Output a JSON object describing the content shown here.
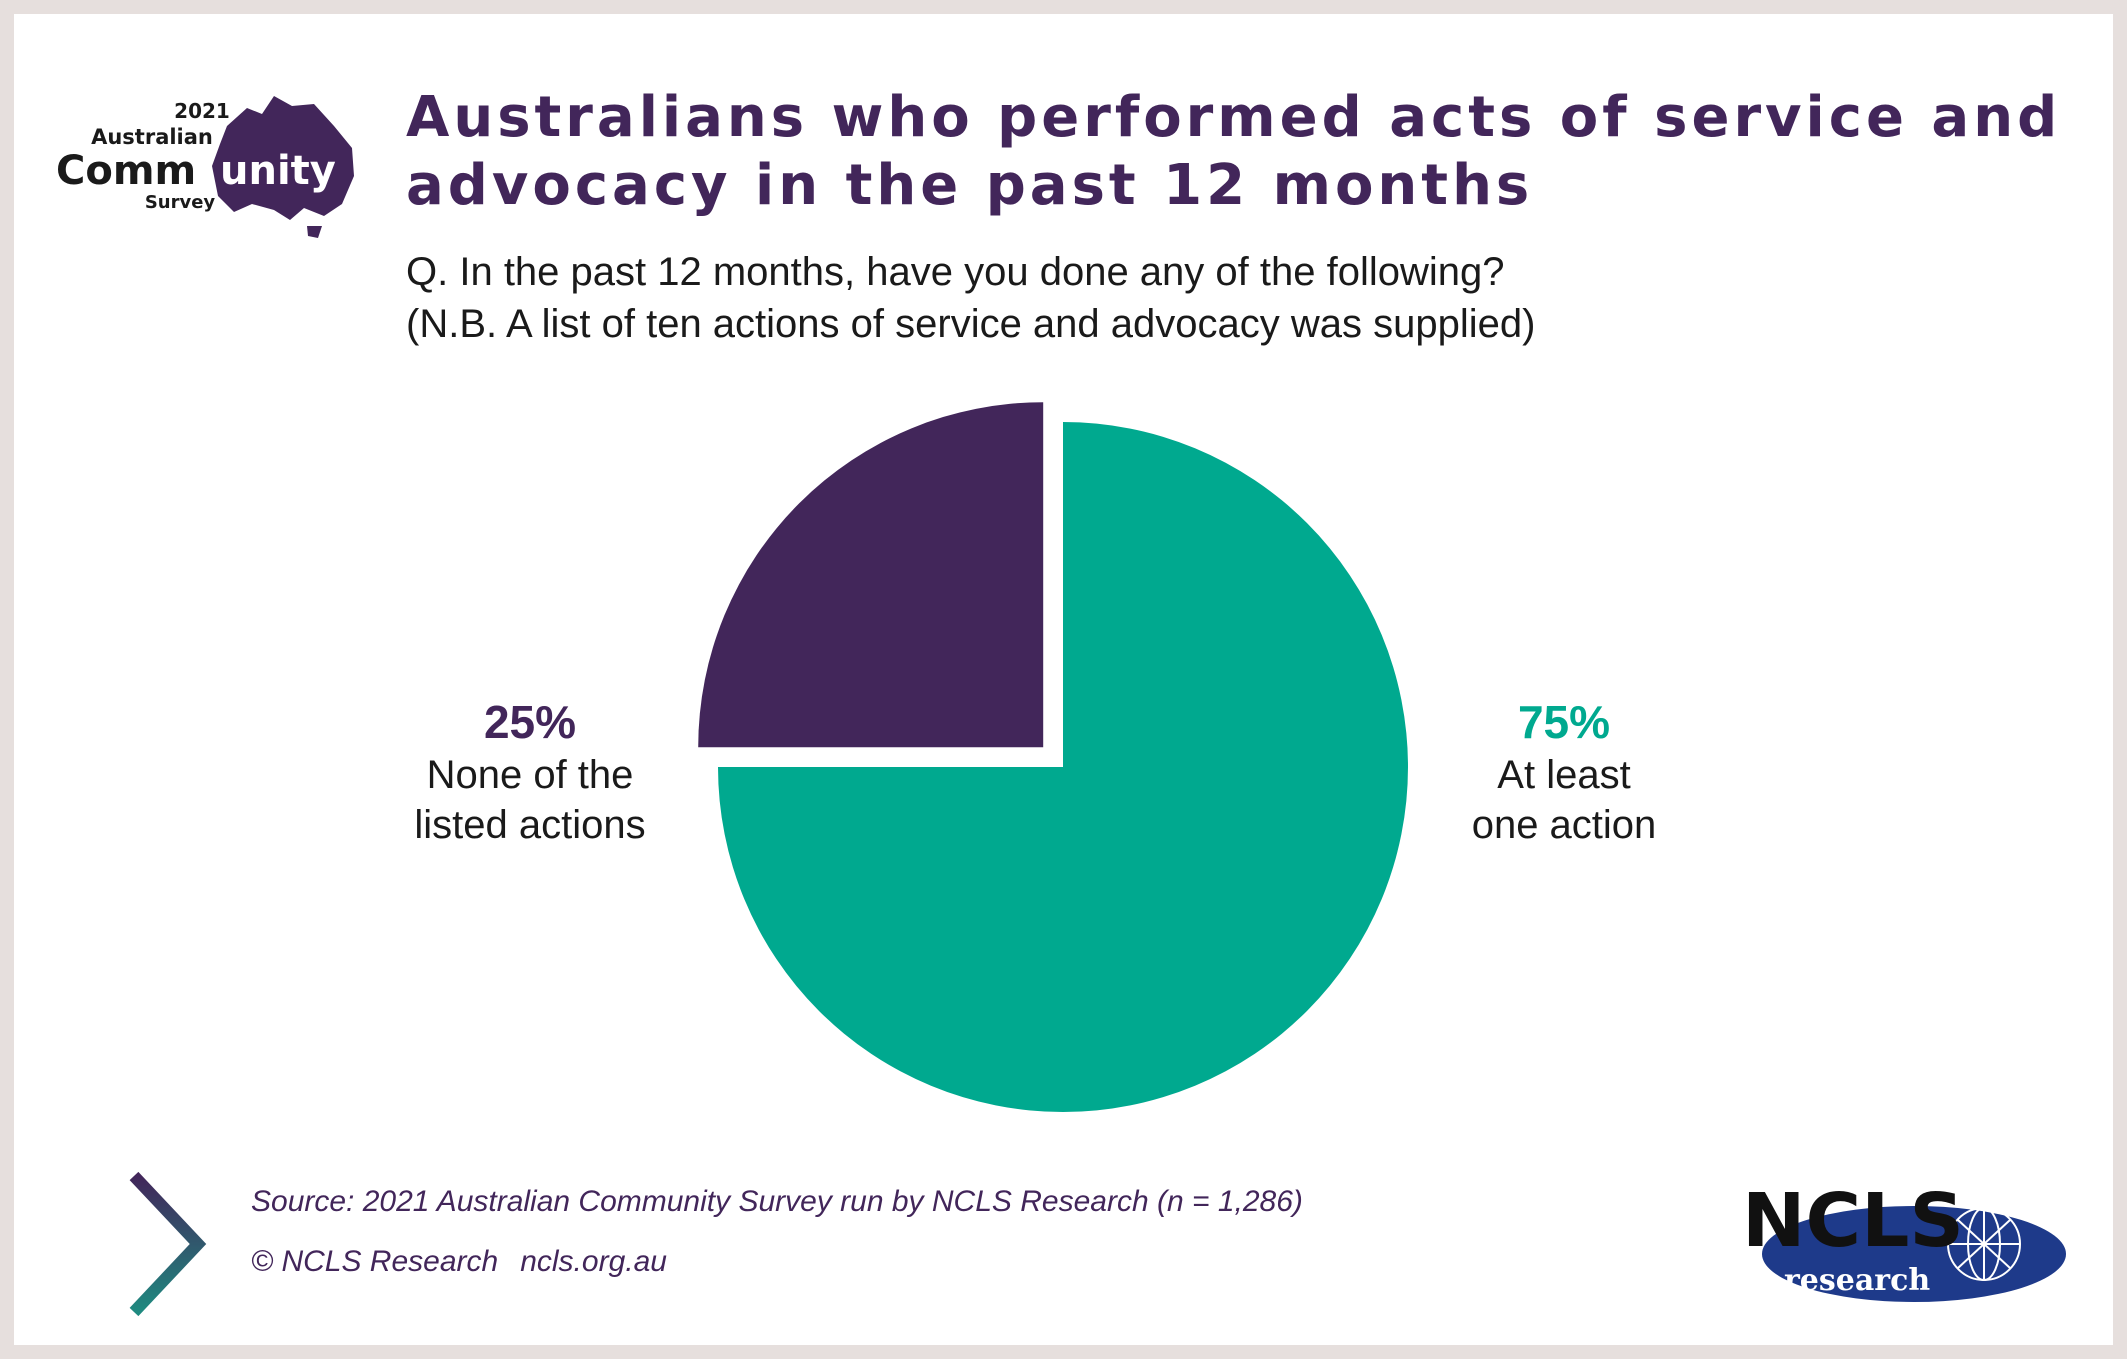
{
  "title": "Australians who performed acts of service and advocacy in the past 12 months",
  "question": [
    "Q. In the past 12 months, have you done any of the following?",
    "(N.B. A list of ten actions of service and advocacy was supplied)"
  ],
  "logo_acs": {
    "year": "2021",
    "line1": "Australian",
    "line2a": "Comm",
    "line2b": "unity",
    "line3": "Survey"
  },
  "logo_ncls": {
    "name": "NCLS",
    "sub": "research"
  },
  "source": "Source: 2021 Australian Community Survey run by NCLS Research (n = 1,286)",
  "copyright": "© NCLS Research",
  "website": "ncls.org.au",
  "colors": {
    "purple": "#42265a",
    "teal": "#00a98f",
    "navy": "#1e3a8a"
  },
  "chart_data": {
    "type": "pie",
    "slices": [
      {
        "percent_label": "25%",
        "label_lines": [
          "None of the",
          "listed actions"
        ],
        "value": 25,
        "color": "#42265a",
        "exploded": true
      },
      {
        "percent_label": "75%",
        "label_lines": [
          "At least",
          "one action"
        ],
        "value": 75,
        "color": "#00a98f",
        "exploded": false
      }
    ],
    "start": "12 o'clock",
    "direction": "counterclockwise for first slice",
    "legend": "none"
  }
}
